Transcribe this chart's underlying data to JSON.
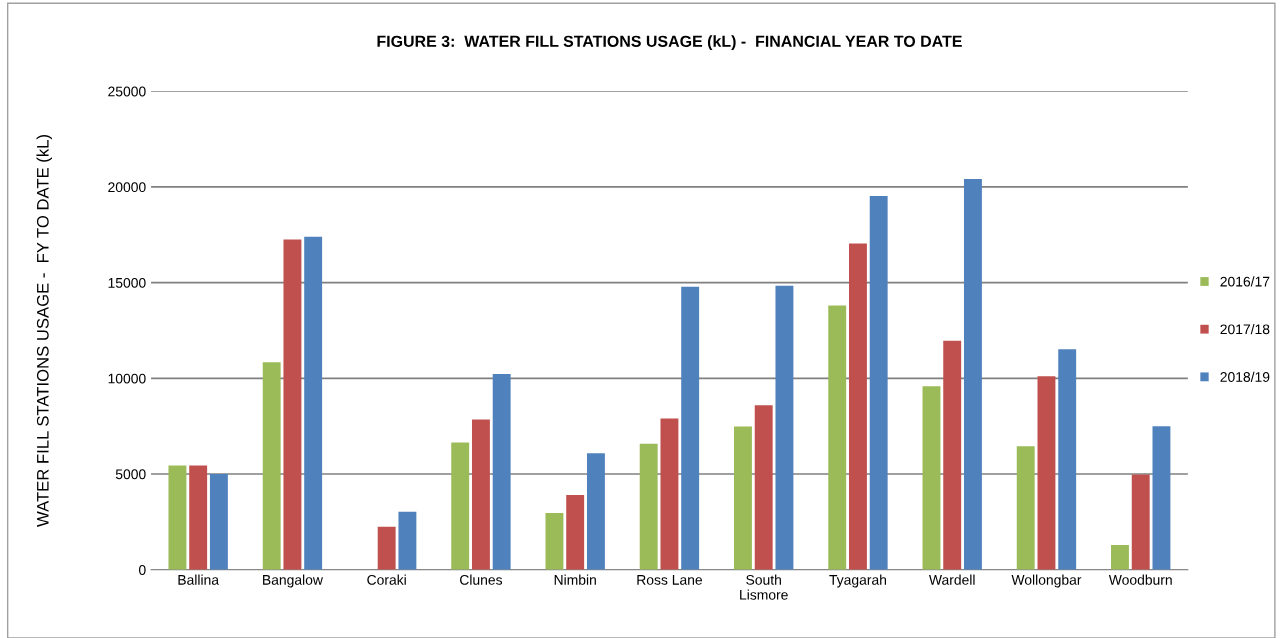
{
  "chart_data": {
    "type": "bar",
    "title": "FIGURE 3:  WATER FILL STATIONS USAGE (kL) -  FINANCIAL YEAR TO DATE",
    "ylabel": "WATER FILL STATIONS USAGE -  FY TO DATE (kL)",
    "categories": [
      "Ballina",
      "Bangalow",
      "Coraki",
      "Clunes",
      "Nimbin",
      "Ross Lane",
      "South\nLismore",
      "Tyagarah",
      "Wardell",
      "Wollongbar",
      "Woodburn"
    ],
    "series": [
      {
        "name": "2016/17",
        "color": "#9bbb59",
        "values": [
          5450,
          10840,
          null,
          6650,
          2960,
          6580,
          7480,
          13800,
          9590,
          6450,
          1290
        ]
      },
      {
        "name": "2017/18",
        "color": "#c0504d",
        "values": [
          5450,
          17260,
          2240,
          7850,
          3900,
          7900,
          8590,
          17050,
          11970,
          10110,
          4980
        ]
      },
      {
        "name": "2018/19",
        "color": "#4f81bd",
        "values": [
          5000,
          17400,
          3030,
          10230,
          6090,
          14790,
          14840,
          19520,
          20410,
          11520,
          7500
        ]
      }
    ],
    "ylim": [
      0,
      25000
    ],
    "yticks": [
      0,
      5000,
      10000,
      15000,
      20000,
      25000
    ],
    "grid": "y",
    "legend": "right"
  }
}
